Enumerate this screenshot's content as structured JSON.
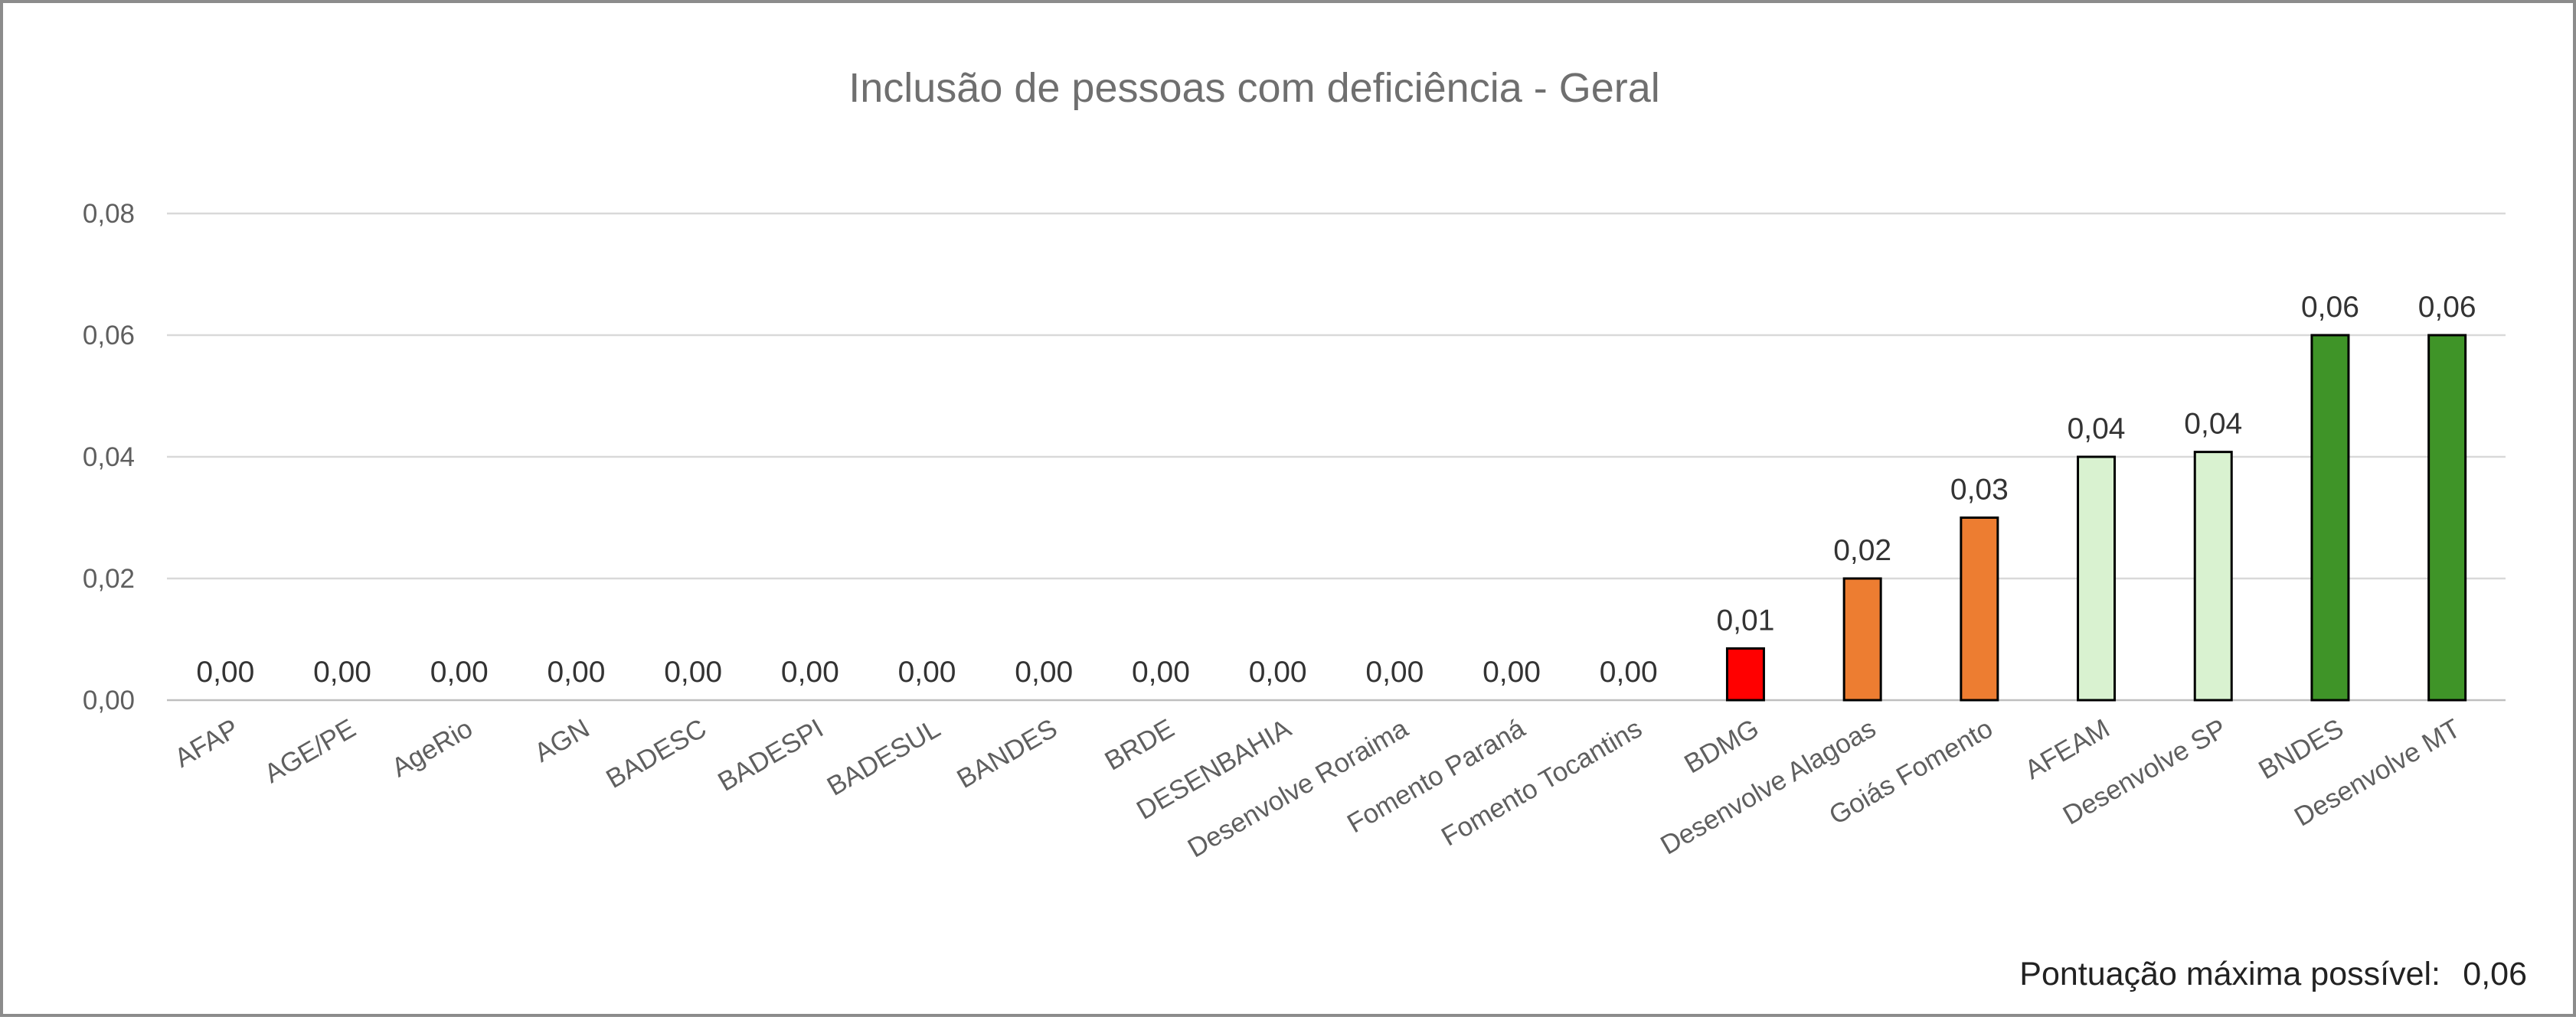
{
  "chart_data": {
    "type": "bar",
    "title": "Inclusão de pessoas com deficiência - Geral",
    "xlabel": "",
    "ylabel": "",
    "ylim": [
      0,
      0.08
    ],
    "yticks": [
      0,
      0.02,
      0.04,
      0.06,
      0.08
    ],
    "ytick_labels": [
      "0,00",
      "0,02",
      "0,04",
      "0,06",
      "0,08"
    ],
    "grid": true,
    "legend": "none",
    "categories": [
      "AFAP",
      "AGE/PE",
      "AgeRio",
      "AGN",
      "BADESC",
      "BADESPI",
      "BADESUL",
      "BANDES",
      "BRDE",
      "DESENBAHIA",
      "Desenvolve Roraima",
      "Fomento Paraná",
      "Fomento Tocantins",
      "BDMG",
      "Desenvolve Alagoas",
      "Goiás Fomento",
      "AFEAM",
      "Desenvolve SP",
      "BNDES",
      "Desenvolve MT"
    ],
    "values": [
      0,
      0,
      0,
      0,
      0,
      0,
      0,
      0,
      0,
      0,
      0,
      0,
      0,
      0.0085,
      0.02,
      0.03,
      0.04,
      0.0408,
      0.06,
      0.06
    ],
    "data_labels": [
      "0,00",
      "0,00",
      "0,00",
      "0,00",
      "0,00",
      "0,00",
      "0,00",
      "0,00",
      "0,00",
      "0,00",
      "0,00",
      "0,00",
      "0,00",
      "0,01",
      "0,02",
      "0,03",
      "0,04",
      "0,04",
      "0,06",
      "0,06"
    ],
    "bar_colors": [
      "#ff0000",
      "#ff0000",
      "#ff0000",
      "#ff0000",
      "#ff0000",
      "#ff0000",
      "#ff0000",
      "#ff0000",
      "#ff0000",
      "#ff0000",
      "#ff0000",
      "#ff0000",
      "#ff0000",
      "#ff0000",
      "#ed7d31",
      "#ed7d31",
      "#d9f2d0",
      "#d9f2d0",
      "#3f9428",
      "#3f9428"
    ]
  },
  "footnote": {
    "label": "Pontuação máxima possível:",
    "value": "0,06"
  }
}
